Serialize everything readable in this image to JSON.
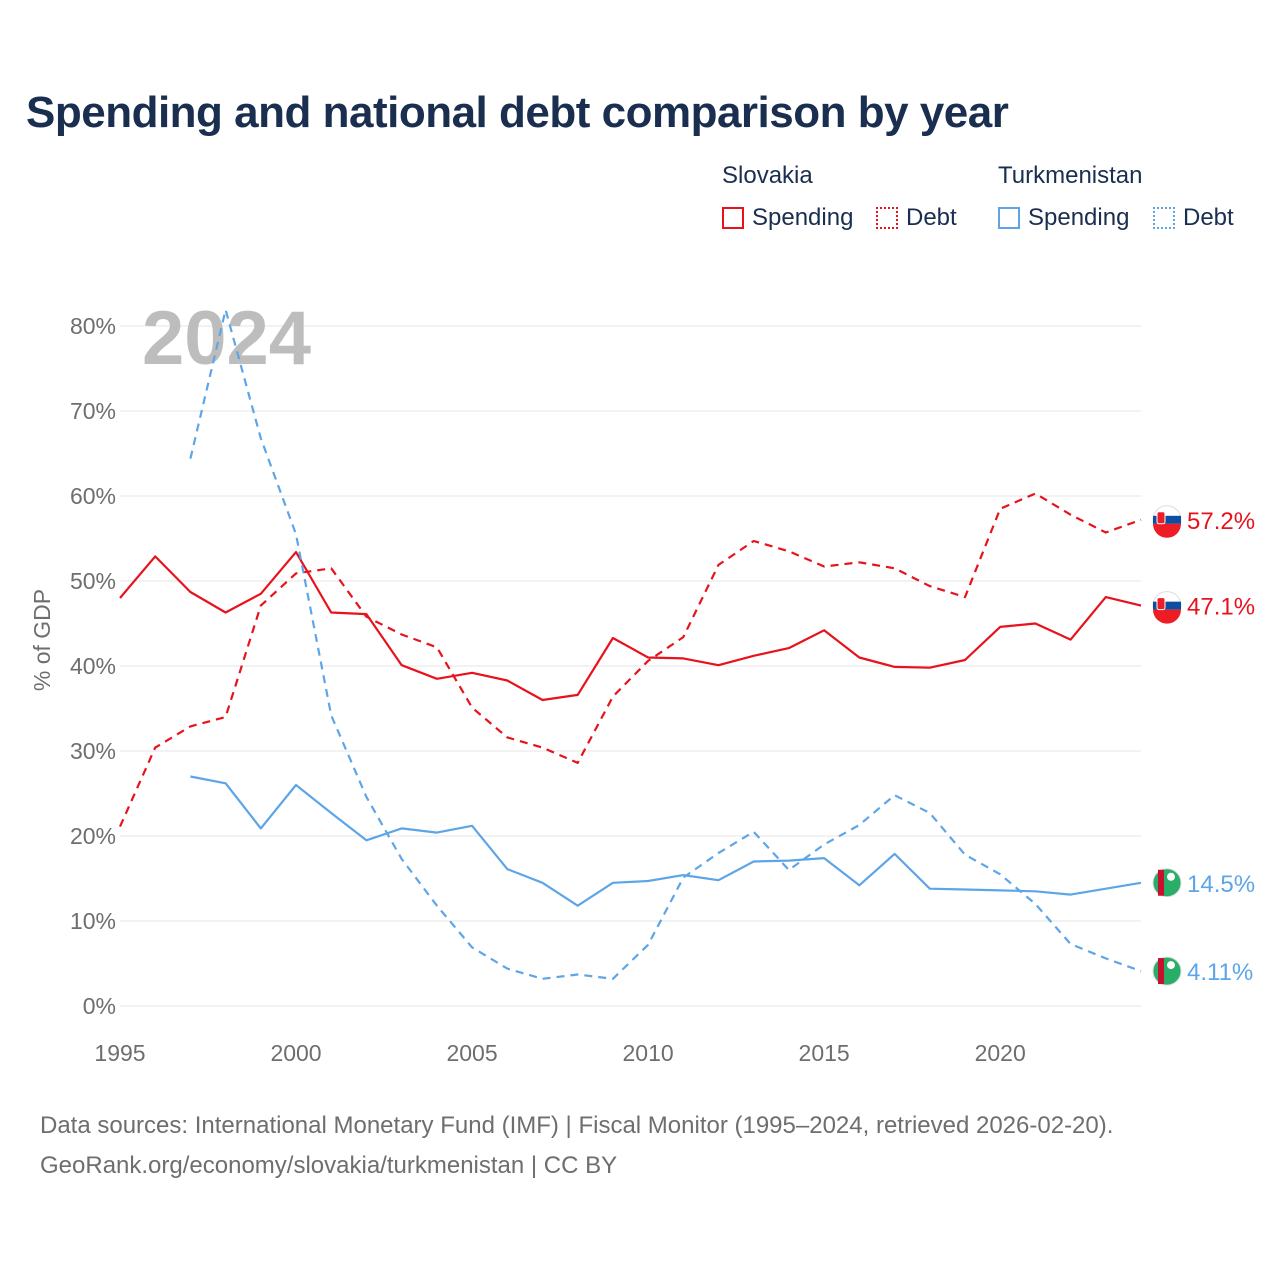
{
  "title": "Spending and national debt comparison by year",
  "legend": {
    "groups": [
      {
        "country": "Slovakia",
        "spending_label": "Spending",
        "debt_label": "Debt"
      },
      {
        "country": "Turkmenistan",
        "spending_label": "Spending",
        "debt_label": "Debt"
      }
    ]
  },
  "year_watermark": "2024",
  "footer": {
    "line1": "Data sources: International Monetary Fund (IMF) | Fiscal Monitor (1995–2024, retrieved 2026-02-20).",
    "line2": "GeoRank.org/economy/slovakia/turkmenistan | CC BY"
  },
  "colors": {
    "slovakia": "#e8121c",
    "turkmenistan": "#5ea5e8",
    "grid": "#e6e6e6",
    "axis_text": "#6e6e6e",
    "watermark": "#bdbdbd"
  },
  "chart_data": {
    "type": "line",
    "ylabel": "% of GDP",
    "xlabel": "",
    "xlim": [
      1995,
      2024
    ],
    "ylim": [
      0,
      80
    ],
    "x_ticks": [
      1995,
      2000,
      2005,
      2010,
      2015,
      2020
    ],
    "y_ticks": [
      0,
      10,
      20,
      30,
      40,
      50,
      60,
      70,
      80
    ],
    "y_tick_labels": [
      "0%",
      "10%",
      "20%",
      "30%",
      "40%",
      "50%",
      "60%",
      "70%",
      "80%"
    ],
    "series": [
      {
        "name": "Slovakia Debt",
        "country": "slovakia",
        "style": "dashed",
        "end_label": "57.2%",
        "x": [
          1995,
          1996,
          1997,
          1998,
          1999,
          2000,
          2001,
          2002,
          2003,
          2004,
          2005,
          2006,
          2007,
          2008,
          2009,
          2010,
          2011,
          2012,
          2013,
          2014,
          2015,
          2016,
          2017,
          2018,
          2019,
          2020,
          2021,
          2022,
          2023,
          2024
        ],
        "values": [
          21.1,
          30.4,
          32.9,
          34.0,
          47.1,
          50.9,
          51.5,
          45.8,
          43.7,
          42.2,
          35.1,
          31.6,
          30.4,
          28.6,
          36.4,
          40.6,
          43.4,
          51.9,
          54.7,
          53.5,
          51.7,
          52.2,
          51.5,
          49.4,
          48.1,
          58.5,
          60.3,
          57.8,
          55.7,
          57.2
        ]
      },
      {
        "name": "Slovakia Spending",
        "country": "slovakia",
        "style": "solid",
        "end_label": "47.1%",
        "x": [
          1995,
          1996,
          1997,
          1998,
          1999,
          2000,
          2001,
          2002,
          2003,
          2004,
          2005,
          2006,
          2007,
          2008,
          2009,
          2010,
          2011,
          2012,
          2013,
          2014,
          2015,
          2016,
          2017,
          2018,
          2019,
          2020,
          2021,
          2022,
          2023,
          2024
        ],
        "values": [
          48.0,
          52.9,
          48.7,
          46.3,
          48.5,
          53.4,
          46.3,
          46.1,
          40.1,
          38.5,
          39.2,
          38.3,
          36.0,
          36.6,
          43.3,
          41.0,
          40.9,
          40.1,
          41.2,
          42.1,
          44.2,
          41.0,
          39.9,
          39.8,
          40.7,
          44.6,
          45.0,
          43.1,
          48.1,
          47.1
        ]
      },
      {
        "name": "Turkmenistan Spending",
        "country": "turkmenistan",
        "style": "solid",
        "end_label": "14.5%",
        "x": [
          1997,
          1998,
          1999,
          2000,
          2001,
          2002,
          2003,
          2004,
          2005,
          2006,
          2007,
          2008,
          2009,
          2010,
          2011,
          2012,
          2013,
          2014,
          2015,
          2016,
          2017,
          2018,
          2019,
          2020,
          2021,
          2022,
          2023,
          2024
        ],
        "values": [
          27.0,
          26.2,
          20.9,
          26.0,
          22.7,
          19.5,
          20.9,
          20.4,
          21.2,
          16.1,
          14.5,
          11.8,
          14.5,
          14.7,
          15.4,
          14.8,
          17.0,
          17.1,
          17.4,
          14.2,
          17.9,
          13.8,
          13.7,
          13.6,
          13.5,
          13.1,
          13.8,
          14.5
        ]
      },
      {
        "name": "Turkmenistan Debt",
        "country": "turkmenistan",
        "style": "dashed",
        "end_label": "4.11%",
        "x": [
          1997,
          1998,
          1999,
          2000,
          2001,
          2002,
          2003,
          2004,
          2005,
          2006,
          2007,
          2008,
          2009,
          2010,
          2011,
          2012,
          2013,
          2014,
          2015,
          2016,
          2017,
          2018,
          2019,
          2020,
          2021,
          2022,
          2023,
          2024
        ],
        "values": [
          64.4,
          81.9,
          66.8,
          55.5,
          34.2,
          24.6,
          17.3,
          11.8,
          6.9,
          4.4,
          3.2,
          3.7,
          3.2,
          7.2,
          15.1,
          18.0,
          20.5,
          16.0,
          19.0,
          21.3,
          24.8,
          22.7,
          17.8,
          15.5,
          12.0,
          7.3,
          5.6,
          4.11
        ]
      }
    ]
  }
}
